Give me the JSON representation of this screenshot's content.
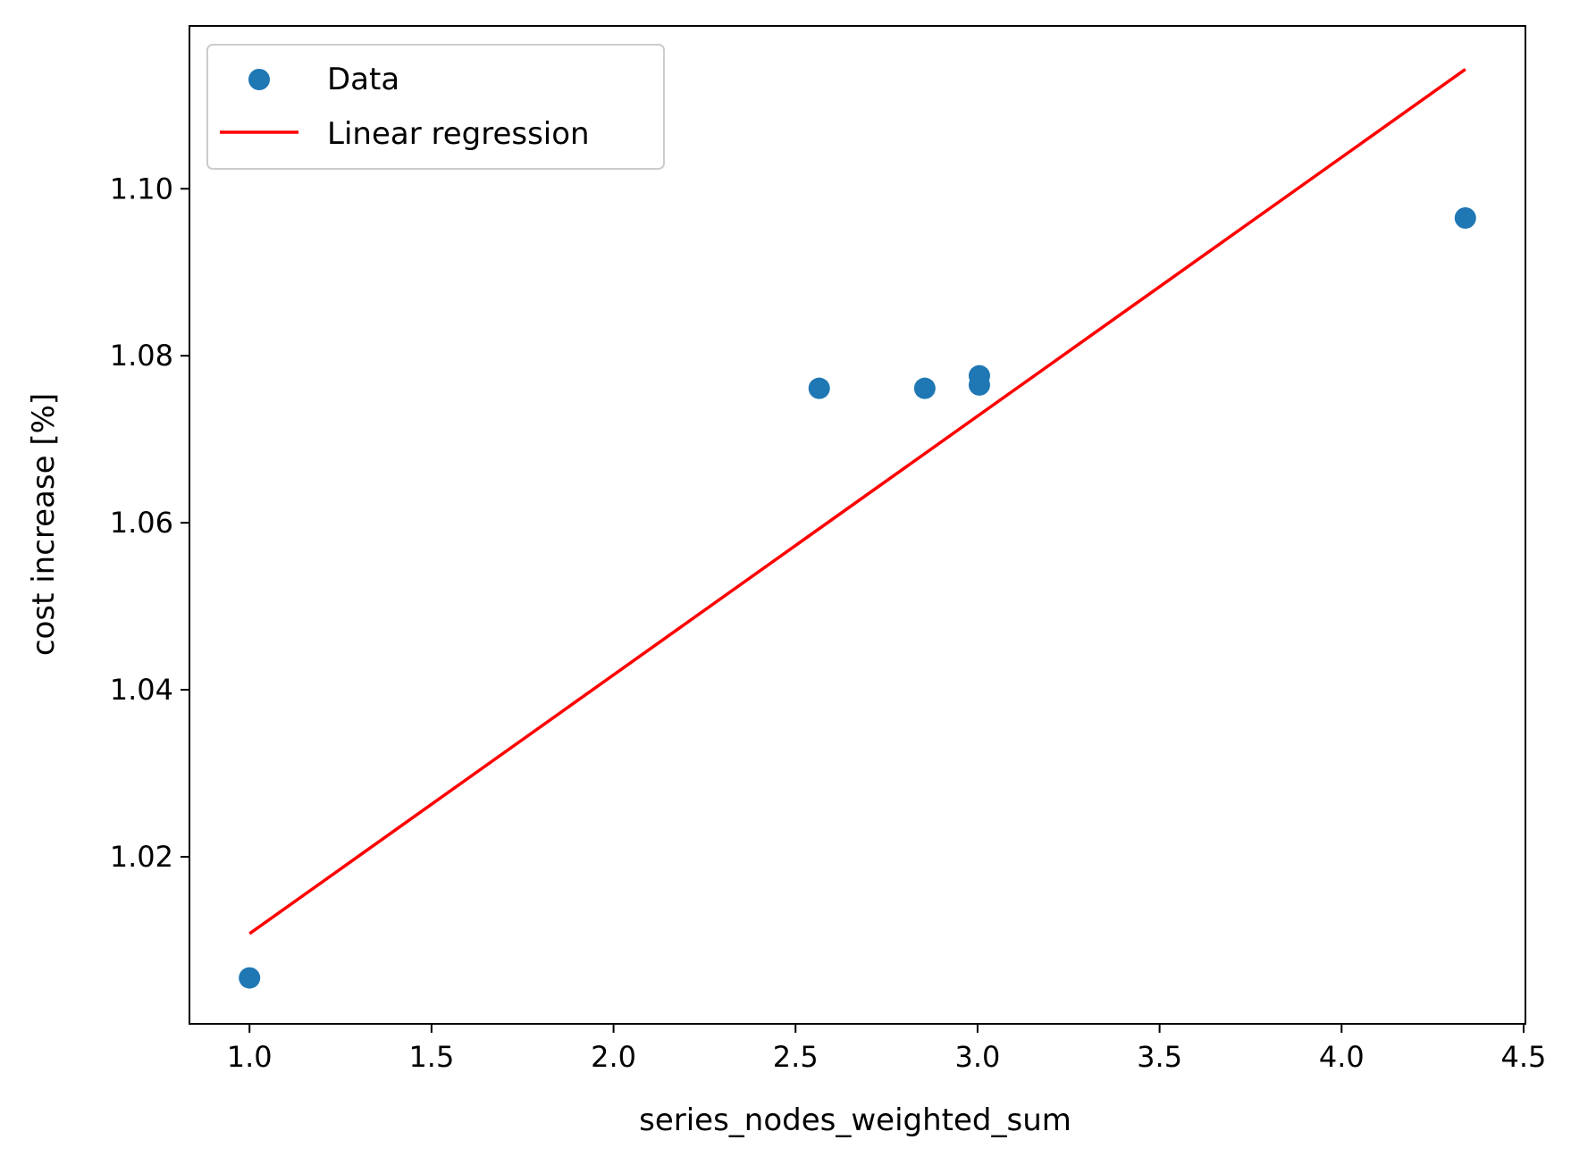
{
  "chart_data": {
    "type": "scatter",
    "title": "",
    "xlabel": "series_nodes_weighted_sum",
    "ylabel": "cost increase [%]",
    "xlim": [
      0.835,
      4.505
    ],
    "ylim": [
      1.0,
      1.1195
    ],
    "xticks": [
      1.0,
      1.5,
      2.0,
      2.5,
      3.0,
      3.5,
      4.0,
      4.5
    ],
    "xtick_labels": [
      "1.0",
      "1.5",
      "2.0",
      "2.5",
      "3.0",
      "3.5",
      "4.0",
      "4.5"
    ],
    "yticks": [
      1.02,
      1.04,
      1.06,
      1.08,
      1.1
    ],
    "ytick_labels": [
      "1.02",
      "1.04",
      "1.06",
      "1.08",
      "1.10"
    ],
    "grid": false,
    "legend_position": "top-left",
    "series": [
      {
        "name": "Data",
        "kind": "scatter",
        "color": "#1f77b4",
        "points": [
          {
            "x": 1.0,
            "y": 1.0055
          },
          {
            "x": 2.565,
            "y": 1.0761
          },
          {
            "x": 2.855,
            "y": 1.0761
          },
          {
            "x": 3.005,
            "y": 1.0776
          },
          {
            "x": 3.005,
            "y": 1.0765
          },
          {
            "x": 4.34,
            "y": 1.0965
          }
        ]
      },
      {
        "name": "Linear regression",
        "kind": "line",
        "color": "#ff0000",
        "points": [
          {
            "x": 1.0,
            "y": 1.0108
          },
          {
            "x": 4.34,
            "y": 1.1143
          }
        ]
      }
    ]
  }
}
